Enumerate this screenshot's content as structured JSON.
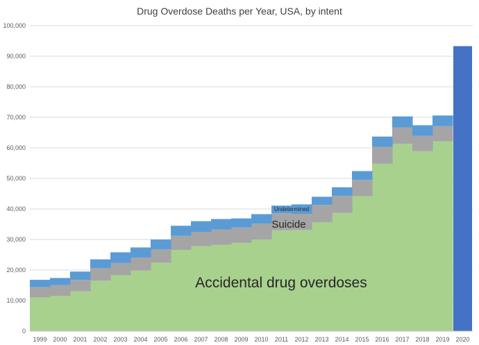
{
  "chart_data": {
    "type": "area",
    "stacked": true,
    "step": true,
    "title": "Drug Overdose Deaths per Year, USA, by intent",
    "xlabel": "",
    "ylabel": "",
    "ylim": [
      0,
      100000
    ],
    "yticks": [
      0,
      10000,
      20000,
      30000,
      40000,
      50000,
      60000,
      70000,
      80000,
      90000,
      100000
    ],
    "ytick_labels": [
      "0",
      "10,000",
      "20,000",
      "30,000",
      "40,000",
      "50,000",
      "60,000",
      "70,000",
      "80,000",
      "90,000",
      "100,000"
    ],
    "grid": "horizontal",
    "categories": [
      "1999",
      "2000",
      "2001",
      "2002",
      "2003",
      "2004",
      "2005",
      "2006",
      "2007",
      "2008",
      "2009",
      "2010",
      "2011",
      "2012",
      "2013",
      "2014",
      "2015",
      "2016",
      "2017",
      "2018",
      "2019",
      "2020"
    ],
    "series": [
      {
        "name": "Accidental drug overdoses",
        "color": "#a9d18e",
        "values": [
          11000,
          11500,
          13000,
          16500,
          18300,
          19800,
          22400,
          26600,
          27800,
          28300,
          28900,
          30000,
          33000,
          33100,
          35600,
          38700,
          44200,
          54800,
          61300,
          58900,
          62100,
          null
        ]
      },
      {
        "name": "Suicide",
        "color": "#a5a5a5",
        "values": [
          3400,
          3600,
          3800,
          4100,
          4000,
          4300,
          4400,
          4600,
          4700,
          5000,
          5000,
          5200,
          5600,
          5300,
          5700,
          5600,
          5300,
          5500,
          5400,
          5000,
          5000,
          null
        ]
      },
      {
        "name": "Undetermined",
        "color": "#5b9bd5",
        "values": [
          2400,
          2300,
          2700,
          2900,
          3500,
          3300,
          3200,
          3300,
          3500,
          3400,
          3000,
          3100,
          2500,
          3100,
          2700,
          2800,
          2900,
          3400,
          3600,
          3500,
          3500,
          null
        ]
      }
    ],
    "total_2020": 93300,
    "total_2020_color": "#4472c4",
    "annotations": [
      {
        "text": "Accidental drug overdoses",
        "target": "Accidental drug overdoses"
      },
      {
        "text": "Suicide",
        "target": "Suicide"
      },
      {
        "text": "Undetermined",
        "target": "Undetermined"
      }
    ],
    "legend": "none"
  },
  "colors": {
    "grid": "#d9d9d9",
    "axis": "#bfbfbf",
    "text": "#595959"
  }
}
